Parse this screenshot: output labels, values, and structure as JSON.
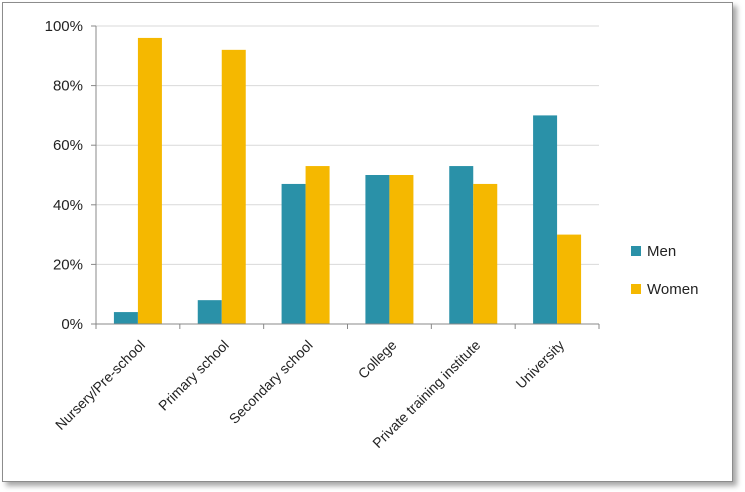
{
  "chart_data": {
    "type": "bar",
    "categories": [
      "Nursery/Pre-school",
      "Primary school",
      "Secondary school",
      "College",
      "Private training institute",
      "University"
    ],
    "series": [
      {
        "name": "Men",
        "values": [
          4,
          8,
          47,
          50,
          53,
          70
        ],
        "color": "#2a91a8"
      },
      {
        "name": "Women",
        "values": [
          96,
          92,
          53,
          50,
          47,
          30
        ],
        "color": "#f5b800"
      }
    ],
    "ylim": [
      0,
      100
    ],
    "yticks": [
      "0%",
      "20%",
      "40%",
      "60%",
      "80%",
      "100%"
    ],
    "ytick_values": [
      0,
      20,
      40,
      60,
      80,
      100
    ],
    "grid": true,
    "legend_position": "right"
  }
}
